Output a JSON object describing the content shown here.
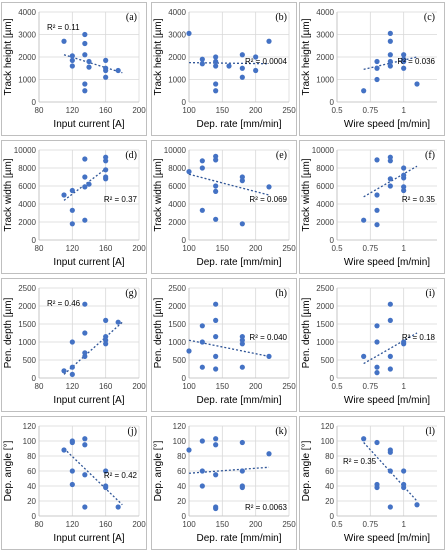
{
  "colors": {
    "marker": "#4472c4",
    "trend": "#2f5597"
  },
  "chart_data": [
    {
      "type": "scatter",
      "tag": "(a)",
      "xlabel": "Input current [A]",
      "ylabel": "Track height [µm]",
      "xlim": [
        80,
        200
      ],
      "xticks": [
        "80",
        "120",
        "160",
        "200"
      ],
      "xtickvals": [
        80,
        120,
        160,
        200
      ],
      "ylim": [
        0,
        4000
      ],
      "yticks": [
        "0",
        "1000",
        "2000",
        "3000",
        "4000"
      ],
      "ytickvals": [
        0,
        1000,
        2000,
        3000,
        4000
      ],
      "r2": "R² = 0.11",
      "r2_pos": "top-left",
      "trend": [
        [
          110,
          2100
        ],
        [
          180,
          1300
        ]
      ],
      "points": [
        [
          110,
          2700
        ],
        [
          120,
          2050
        ],
        [
          120,
          1850
        ],
        [
          120,
          1600
        ],
        [
          135,
          3000
        ],
        [
          135,
          2600
        ],
        [
          135,
          2100
        ],
        [
          135,
          800
        ],
        [
          135,
          500
        ],
        [
          140,
          1800
        ],
        [
          140,
          1550
        ],
        [
          160,
          1850
        ],
        [
          160,
          1500
        ],
        [
          160,
          1400
        ],
        [
          160,
          1100
        ],
        [
          175,
          1400
        ]
      ]
    },
    {
      "type": "scatter",
      "tag": "(b)",
      "xlabel": "Dep. rate [mm/min]",
      "ylabel": "Track height [µm]",
      "xlim": [
        100,
        250
      ],
      "xticks": [
        "100",
        "150",
        "200",
        "250"
      ],
      "xtickvals": [
        100,
        150,
        200,
        250
      ],
      "ylim": [
        0,
        4000
      ],
      "yticks": [
        "0",
        "1000",
        "2000",
        "3000",
        "4000"
      ],
      "ytickvals": [
        0,
        1000,
        2000,
        3000,
        4000
      ],
      "r2": "R² = 0.0004",
      "r2_pos": "right",
      "trend": [
        [
          100,
          1750
        ],
        [
          220,
          1700
        ]
      ],
      "points": [
        [
          100,
          3050
        ],
        [
          120,
          1900
        ],
        [
          120,
          1700
        ],
        [
          140,
          2000
        ],
        [
          140,
          1800
        ],
        [
          140,
          1600
        ],
        [
          140,
          800
        ],
        [
          140,
          500
        ],
        [
          160,
          1600
        ],
        [
          180,
          2100
        ],
        [
          180,
          1500
        ],
        [
          180,
          1100
        ],
        [
          200,
          2000
        ],
        [
          200,
          1400
        ],
        [
          220,
          2700
        ]
      ]
    },
    {
      "type": "scatter",
      "tag": "(c)",
      "xlabel": "Wire speed [m/min]",
      "ylabel": "Track height [µm]",
      "xlim": [
        0.5,
        1.25
      ],
      "xticks": [
        "0.5",
        "0.75",
        "1"
      ],
      "xtickvals": [
        0.5,
        0.75,
        1.0
      ],
      "ylim": [
        0,
        4000
      ],
      "yticks": [
        "0",
        "1000",
        "2000",
        "3000",
        "4000"
      ],
      "ytickvals": [
        0,
        1000,
        2000,
        3000,
        4000
      ],
      "r2": "R² = 0.036",
      "r2_pos": "right",
      "trend": [
        [
          0.7,
          1450
        ],
        [
          1.1,
          2000
        ]
      ],
      "points": [
        [
          0.7,
          500
        ],
        [
          0.8,
          1800
        ],
        [
          0.8,
          1500
        ],
        [
          0.8,
          1000
        ],
        [
          0.9,
          3050
        ],
        [
          0.9,
          2700
        ],
        [
          0.9,
          2100
        ],
        [
          0.9,
          1800
        ],
        [
          0.9,
          1600
        ],
        [
          1.0,
          2100
        ],
        [
          1.0,
          1900
        ],
        [
          1.0,
          1800
        ],
        [
          1.0,
          1500
        ],
        [
          1.1,
          800
        ]
      ]
    },
    {
      "type": "scatter",
      "tag": "(d)",
      "xlabel": "Input current [A]",
      "ylabel": "Track width [µm]",
      "xlim": [
        80,
        200
      ],
      "xticks": [
        "80",
        "120",
        "160",
        "200"
      ],
      "xtickvals": [
        80,
        120,
        160,
        200
      ],
      "ylim": [
        0,
        10000
      ],
      "yticks": [
        "0",
        "2000",
        "4000",
        "6000",
        "8000",
        "10000"
      ],
      "ytickvals": [
        0,
        2000,
        4000,
        6000,
        8000,
        10000
      ],
      "r2": "R² = 0.37",
      "r2_pos": "right",
      "trend": [
        [
          110,
          4400
        ],
        [
          160,
          7900
        ]
      ],
      "points": [
        [
          110,
          5000
        ],
        [
          120,
          5500
        ],
        [
          120,
          3300
        ],
        [
          120,
          1800
        ],
        [
          135,
          9000
        ],
        [
          135,
          7000
        ],
        [
          135,
          5900
        ],
        [
          135,
          2200
        ],
        [
          140,
          6200
        ],
        [
          160,
          9200
        ],
        [
          160,
          8800
        ],
        [
          160,
          7800
        ],
        [
          160,
          7000
        ],
        [
          160,
          6800
        ]
      ]
    },
    {
      "type": "scatter",
      "tag": "(e)",
      "xlabel": "Dep. rate [mm/min]",
      "ylabel": "Track width [µm]",
      "xlim": [
        100,
        250
      ],
      "xticks": [
        "100",
        "150",
        "200",
        "250"
      ],
      "xtickvals": [
        100,
        150,
        200,
        250
      ],
      "ylim": [
        0,
        10000
      ],
      "yticks": [
        "0",
        "2000",
        "4000",
        "6000",
        "8000",
        "10000"
      ],
      "ytickvals": [
        0,
        2000,
        4000,
        6000,
        8000,
        10000
      ],
      "r2": "R² = 0.069",
      "r2_pos": "right",
      "trend": [
        [
          100,
          7300
        ],
        [
          220,
          5000
        ]
      ],
      "points": [
        [
          100,
          7600
        ],
        [
          120,
          8800
        ],
        [
          120,
          8000
        ],
        [
          120,
          3300
        ],
        [
          140,
          9300
        ],
        [
          140,
          8900
        ],
        [
          140,
          6000
        ],
        [
          140,
          5400
        ],
        [
          140,
          2300
        ],
        [
          180,
          7000
        ],
        [
          180,
          6600
        ],
        [
          180,
          1800
        ],
        [
          220,
          5900
        ]
      ]
    },
    {
      "type": "scatter",
      "tag": "(f)",
      "xlabel": "Wire speed [m/min]",
      "ylabel": "Track width [µm]",
      "xlim": [
        0.5,
        1.25
      ],
      "xticks": [
        "0.5",
        "0.75",
        "1"
      ],
      "xtickvals": [
        0.5,
        0.75,
        1.0
      ],
      "ylim": [
        0,
        10000
      ],
      "yticks": [
        "0",
        "2000",
        "4000",
        "6000",
        "8000",
        "10000"
      ],
      "ytickvals": [
        0,
        2000,
        4000,
        6000,
        8000,
        10000
      ],
      "r2": "R² = 0.35",
      "r2_pos": "right",
      "trend": [
        [
          0.7,
          4800
        ],
        [
          1.1,
          8200
        ]
      ],
      "points": [
        [
          0.7,
          2200
        ],
        [
          0.8,
          8900
        ],
        [
          0.8,
          5000
        ],
        [
          0.8,
          3300
        ],
        [
          0.8,
          1700
        ],
        [
          0.9,
          9200
        ],
        [
          0.9,
          8800
        ],
        [
          0.9,
          6800
        ],
        [
          0.9,
          6000
        ],
        [
          1.0,
          8000
        ],
        [
          1.0,
          7200
        ],
        [
          1.0,
          6900
        ],
        [
          1.0,
          5900
        ],
        [
          1.0,
          5500
        ]
      ]
    },
    {
      "type": "scatter",
      "tag": "(g)",
      "xlabel": "Input current [A]",
      "ylabel": "Pen. depth [µm]",
      "xlim": [
        80,
        200
      ],
      "xticks": [
        "80",
        "120",
        "160",
        "200"
      ],
      "xtickvals": [
        80,
        120,
        160,
        200
      ],
      "ylim": [
        0,
        2500
      ],
      "yticks": [
        "0",
        "500",
        "1000",
        "1500",
        "2000",
        "2500"
      ],
      "ytickvals": [
        0,
        500,
        1000,
        1500,
        2000,
        2500
      ],
      "r2": "R² = 0.46",
      "r2_pos": "top-left",
      "trend": [
        [
          110,
          100
        ],
        [
          180,
          1550
        ]
      ],
      "points": [
        [
          110,
          200
        ],
        [
          120,
          1000
        ],
        [
          120,
          300
        ],
        [
          120,
          100
        ],
        [
          135,
          2050
        ],
        [
          135,
          1250
        ],
        [
          135,
          700
        ],
        [
          135,
          600
        ],
        [
          160,
          1600
        ],
        [
          160,
          1150
        ],
        [
          160,
          1050
        ],
        [
          160,
          950
        ],
        [
          175,
          1550
        ]
      ]
    },
    {
      "type": "scatter",
      "tag": "(h)",
      "xlabel": "Dep. rate [mm/min]",
      "ylabel": "Pen. depth [µm]",
      "xlim": [
        100,
        250
      ],
      "xticks": [
        "100",
        "150",
        "200",
        "250"
      ],
      "xtickvals": [
        100,
        150,
        200,
        250
      ],
      "ylim": [
        0,
        2500
      ],
      "yticks": [
        "0",
        "500",
        "1000",
        "1500",
        "2000",
        "2500"
      ],
      "ytickvals": [
        0,
        500,
        1000,
        1500,
        2000,
        2500
      ],
      "r2": "R² = 0.040",
      "r2_pos": "right",
      "trend": [
        [
          100,
          1050
        ],
        [
          220,
          600
        ]
      ],
      "points": [
        [
          100,
          750
        ],
        [
          120,
          1450
        ],
        [
          120,
          1000
        ],
        [
          120,
          300
        ],
        [
          140,
          2050
        ],
        [
          140,
          1600
        ],
        [
          140,
          1150
        ],
        [
          140,
          600
        ],
        [
          140,
          250
        ],
        [
          180,
          1150
        ],
        [
          180,
          1050
        ],
        [
          180,
          950
        ],
        [
          180,
          300
        ],
        [
          220,
          600
        ]
      ]
    },
    {
      "type": "scatter",
      "tag": "(i)",
      "xlabel": "Wire speed [m/min]",
      "ylabel": "Pen. depth [µm]",
      "xlim": [
        0.5,
        1.25
      ],
      "xticks": [
        "0.5",
        "0.75",
        "1"
      ],
      "xtickvals": [
        0.5,
        0.75,
        1.0
      ],
      "ylim": [
        0,
        2500
      ],
      "yticks": [
        "0",
        "500",
        "1000",
        "1500",
        "2000",
        "2500"
      ],
      "ytickvals": [
        0,
        500,
        1000,
        1500,
        2000,
        2500
      ],
      "r2": "R² = 0.18",
      "r2_pos": "right",
      "trend": [
        [
          0.7,
          400
        ],
        [
          1.1,
          1250
        ]
      ],
      "points": [
        [
          0.7,
          600
        ],
        [
          0.8,
          1450
        ],
        [
          0.8,
          1000
        ],
        [
          0.8,
          300
        ],
        [
          0.8,
          150
        ],
        [
          0.9,
          2050
        ],
        [
          0.9,
          1600
        ],
        [
          0.9,
          600
        ],
        [
          0.9,
          250
        ],
        [
          1.0,
          1000
        ],
        [
          1.0,
          950
        ]
      ]
    },
    {
      "type": "scatter",
      "tag": "(j)",
      "xlabel": "Input current [A]",
      "ylabel": "Dep. angle [°]",
      "xlim": [
        80,
        200
      ],
      "xticks": [
        "80",
        "120",
        "160",
        "200"
      ],
      "xtickvals": [
        80,
        120,
        160,
        200
      ],
      "ylim": [
        0,
        120
      ],
      "yticks": [
        "0",
        "20",
        "40",
        "60",
        "80",
        "100",
        "120"
      ],
      "ytickvals": [
        0,
        20,
        40,
        60,
        80,
        100,
        120
      ],
      "r2": "R² = 0.42",
      "r2_pos": "right",
      "trend": [
        [
          110,
          90
        ],
        [
          180,
          15
        ]
      ],
      "points": [
        [
          110,
          88
        ],
        [
          120,
          100
        ],
        [
          120,
          98
        ],
        [
          120,
          60
        ],
        [
          120,
          42
        ],
        [
          135,
          103
        ],
        [
          135,
          95
        ],
        [
          135,
          55
        ],
        [
          135,
          12
        ],
        [
          160,
          60
        ],
        [
          160,
          40
        ],
        [
          160,
          38
        ],
        [
          175,
          12
        ]
      ]
    },
    {
      "type": "scatter",
      "tag": "(k)",
      "xlabel": "Dep. rate [mm/min]",
      "ylabel": "Dep. angle [°]",
      "xlim": [
        100,
        250
      ],
      "xticks": [
        "100",
        "150",
        "200",
        "250"
      ],
      "xtickvals": [
        100,
        150,
        200,
        250
      ],
      "ylim": [
        0,
        120
      ],
      "yticks": [
        "0",
        "20",
        "40",
        "60",
        "80",
        "100",
        "120"
      ],
      "ytickvals": [
        0,
        20,
        40,
        60,
        80,
        100,
        120
      ],
      "r2": "R² = 0.0063",
      "r2_pos": "bottom-right",
      "trend": [
        [
          100,
          57
        ],
        [
          220,
          65
        ]
      ],
      "points": [
        [
          100,
          88
        ],
        [
          120,
          100
        ],
        [
          120,
          60
        ],
        [
          120,
          40
        ],
        [
          140,
          103
        ],
        [
          140,
          95
        ],
        [
          140,
          55
        ],
        [
          140,
          12
        ],
        [
          140,
          10
        ],
        [
          180,
          98
        ],
        [
          180,
          60
        ],
        [
          180,
          40
        ],
        [
          180,
          38
        ],
        [
          220,
          83
        ]
      ]
    },
    {
      "type": "scatter",
      "tag": "(l)",
      "xlabel": "Wire speed [m/min]",
      "ylabel": "Dep. angle [°]",
      "xlim": [
        0.5,
        1.25
      ],
      "xticks": [
        "0.5",
        "0.75",
        "1"
      ],
      "xtickvals": [
        0.5,
        0.75,
        1.0
      ],
      "ylim": [
        0,
        120
      ],
      "yticks": [
        "0",
        "20",
        "40",
        "60",
        "80",
        "100",
        "120"
      ],
      "ytickvals": [
        0,
        20,
        40,
        60,
        80,
        100,
        120
      ],
      "r2": "R² = 0.35",
      "r2_pos": "left",
      "trend": [
        [
          0.7,
          98
        ],
        [
          1.1,
          20
        ]
      ],
      "points": [
        [
          0.7,
          103
        ],
        [
          0.8,
          98
        ],
        [
          0.8,
          42
        ],
        [
          0.8,
          38
        ],
        [
          0.9,
          88
        ],
        [
          0.9,
          85
        ],
        [
          0.9,
          60
        ],
        [
          0.9,
          12
        ],
        [
          1.0,
          60
        ],
        [
          1.0,
          42
        ],
        [
          1.0,
          38
        ],
        [
          1.1,
          15
        ]
      ]
    }
  ]
}
